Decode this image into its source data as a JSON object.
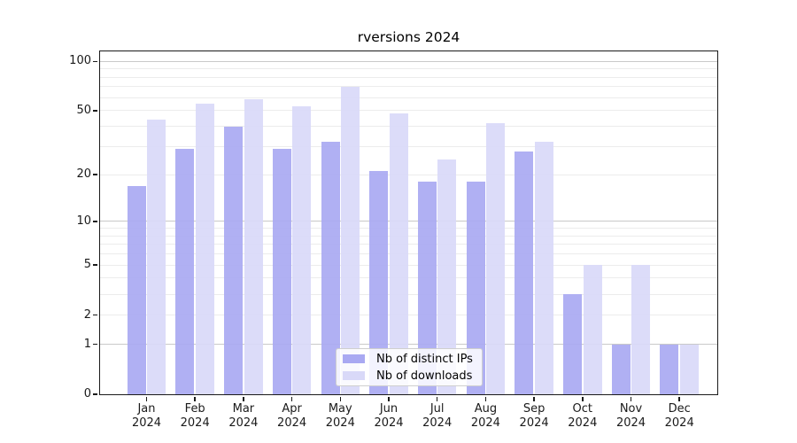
{
  "page": {
    "title": "rversions 2024"
  },
  "legend": {
    "items": [
      {
        "label": "Nb of distinct IPs",
        "color": "#a9a9f2"
      },
      {
        "label": "Nb of downloads",
        "color": "#d9d9f8"
      }
    ]
  },
  "chart_data": {
    "type": "bar",
    "title": "rversions 2024",
    "categories": [
      "Jan 2024",
      "Feb 2024",
      "Mar 2024",
      "Apr 2024",
      "May 2024",
      "Jun 2024",
      "Jul 2024",
      "Aug 2024",
      "Sep 2024",
      "Oct 2024",
      "Nov 2024",
      "Dec 2024"
    ],
    "x_axis": {
      "months": [
        "Jan",
        "Feb",
        "Mar",
        "Apr",
        "May",
        "Jun",
        "Jul",
        "Aug",
        "Sep",
        "Oct",
        "Nov",
        "Dec"
      ],
      "year": "2024"
    },
    "y_axis": {
      "scale": "log1p",
      "ticks": [
        0,
        1,
        2,
        5,
        10,
        20,
        50,
        100
      ],
      "gridlines": [
        1,
        2,
        3,
        4,
        5,
        6,
        7,
        8,
        9,
        10,
        20,
        30,
        40,
        50,
        60,
        70,
        80,
        90,
        100
      ],
      "major_gridlines": [
        1,
        10,
        100
      ],
      "ylim": [
        0,
        115
      ]
    },
    "series": [
      {
        "name": "Nb of distinct IPs",
        "color": "#a9a9f2",
        "values": [
          17,
          29,
          40,
          29,
          32,
          21,
          18,
          18,
          28,
          3,
          1,
          1
        ]
      },
      {
        "name": "Nb of downloads",
        "color": "#d9d9f8",
        "values": [
          44,
          55,
          59,
          53,
          70,
          48,
          25,
          42,
          32,
          5,
          5,
          1
        ]
      }
    ],
    "legend_position": "lower center inside plot",
    "grid": true,
    "xlabel": "",
    "ylabel": ""
  },
  "colors": {
    "axis": "#1a1a1a",
    "gridline_minor": "#ececec",
    "gridline_major": "#c9c9c9",
    "background": "#ffffff"
  }
}
